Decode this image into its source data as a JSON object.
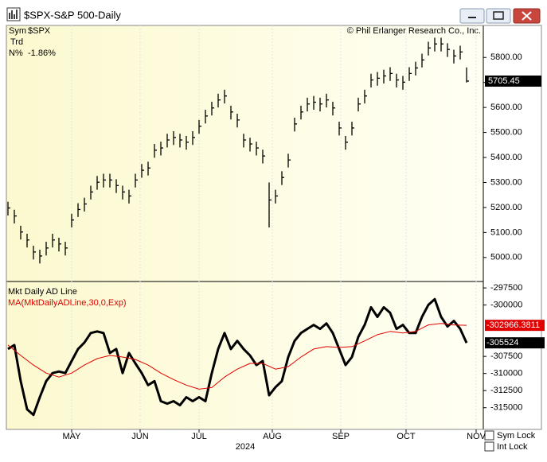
{
  "window": {
    "title": "$SPX-S&P 500-Daily"
  },
  "info": {
    "sym_label": "Sym",
    "sym": "$SPX",
    "trd": "Trd",
    "n_label": "N%",
    "n": "-1.86%",
    "copyright": "© Phil Erlanger Research Co., Inc."
  },
  "controls": [
    "Sym Lock",
    "Int Lock"
  ],
  "chart_data": [
    {
      "type": "ohlc",
      "color": "#000000",
      "x": [
        0,
        2,
        4,
        6,
        8,
        10,
        12,
        14,
        16,
        18,
        20,
        22,
        24,
        26,
        28,
        30,
        32,
        34,
        36,
        38,
        40,
        42,
        44,
        46,
        48,
        50,
        52,
        54,
        56,
        58,
        60,
        62,
        64,
        66,
        68,
        70,
        72,
        74,
        76,
        78,
        80,
        82,
        84,
        86,
        88,
        90,
        92,
        94,
        96,
        98,
        100,
        102,
        104,
        106,
        108,
        110,
        112,
        114,
        116,
        118,
        120,
        122,
        124,
        126,
        128,
        130,
        132,
        134,
        136,
        138,
        140,
        142,
        144
      ],
      "high": [
        5223,
        5191,
        5127,
        5095,
        5047,
        5031,
        5063,
        5095,
        5079,
        5063,
        5175,
        5217,
        5239,
        5287,
        5326,
        5335,
        5335,
        5313,
        5287,
        5271,
        5335,
        5374,
        5383,
        5454,
        5463,
        5495,
        5505,
        5495,
        5486,
        5505,
        5550,
        5591,
        5623,
        5655,
        5671,
        5607,
        5575,
        5495,
        5479,
        5463,
        5431,
        5300,
        5271,
        5345,
        5415,
        5559,
        5607,
        5639,
        5646,
        5639,
        5655,
        5623,
        5543,
        5486,
        5543,
        5639,
        5671,
        5735,
        5742,
        5751,
        5761,
        5735,
        5726,
        5761,
        5783,
        5815,
        5863,
        5879,
        5879,
        5857,
        5831,
        5847,
        5760
      ],
      "low": [
        5168,
        5136,
        5072,
        5040,
        4992,
        4976,
        5008,
        5040,
        5024,
        5008,
        5120,
        5162,
        5184,
        5232,
        5271,
        5280,
        5280,
        5258,
        5232,
        5216,
        5280,
        5319,
        5328,
        5399,
        5408,
        5440,
        5450,
        5440,
        5431,
        5450,
        5495,
        5536,
        5568,
        5600,
        5616,
        5552,
        5520,
        5440,
        5424,
        5408,
        5376,
        5120,
        5216,
        5290,
        5360,
        5504,
        5552,
        5584,
        5591,
        5584,
        5600,
        5568,
        5488,
        5431,
        5488,
        5584,
        5616,
        5680,
        5687,
        5696,
        5706,
        5680,
        5671,
        5706,
        5728,
        5760,
        5808,
        5824,
        5824,
        5802,
        5776,
        5792,
        5700
      ],
      "close": [
        5198,
        5166,
        5102,
        5070,
        5022,
        5006,
        5038,
        5070,
        5054,
        5038,
        5150,
        5192,
        5214,
        5262,
        5301,
        5310,
        5310,
        5288,
        5262,
        5246,
        5310,
        5349,
        5358,
        5429,
        5438,
        5470,
        5480,
        5470,
        5461,
        5480,
        5525,
        5566,
        5598,
        5630,
        5646,
        5582,
        5550,
        5470,
        5454,
        5438,
        5406,
        5230,
        5246,
        5320,
        5390,
        5534,
        5582,
        5614,
        5621,
        5614,
        5630,
        5598,
        5518,
        5461,
        5518,
        5614,
        5646,
        5710,
        5717,
        5726,
        5736,
        5710,
        5701,
        5736,
        5758,
        5790,
        5838,
        5854,
        5854,
        5832,
        5806,
        5822,
        5705.45
      ],
      "xlim": [
        -0.5,
        149.25
      ],
      "ylim": [
        4904,
        5928
      ],
      "yticks": [
        {
          "value": 5000,
          "label": "5000.00"
        },
        {
          "value": 5100,
          "label": "5100.00"
        },
        {
          "value": 5200,
          "label": "5200.00"
        },
        {
          "value": 5300,
          "label": "5300.00"
        },
        {
          "value": 5400,
          "label": "5400.00"
        },
        {
          "value": 5500,
          "label": "5500.00"
        },
        {
          "value": 5600,
          "label": "5600.00"
        },
        {
          "value": 5700,
          "label": "5700.00"
        },
        {
          "value": 5800,
          "label": "5800.00"
        }
      ]
    },
    {
      "type": "line",
      "xlim": [
        -0.5,
        149.25
      ],
      "ylim": [
        -318170,
        -296560
      ],
      "yticks": [
        -297500,
        -300000,
        -307500,
        -310000,
        -312500,
        -315000
      ],
      "xticks": [
        {
          "value": 20,
          "label": "MAY"
        },
        {
          "value": 41.5,
          "label": "JUN"
        },
        {
          "value": 60,
          "label": "JUL"
        },
        {
          "value": 83,
          "label": "AUG"
        },
        {
          "value": 104.5,
          "label": "SEP"
        },
        {
          "value": 125,
          "label": "OCT"
        },
        {
          "value": 147,
          "label": "NOV"
        }
      ],
      "xlabel": "2024",
      "series": [
        {
          "name": "Mkt Daily AD Line",
          "color": "#000000",
          "x": [
            0,
            2,
            4,
            6,
            8,
            10,
            12,
            14,
            16,
            18,
            20,
            22,
            24,
            26,
            28,
            30,
            32,
            34,
            36,
            38,
            40,
            42,
            44,
            46,
            48,
            50,
            52,
            54,
            56,
            58,
            60,
            62,
            64,
            66,
            68,
            70,
            72,
            74,
            76,
            78,
            80,
            82,
            84,
            86,
            88,
            90,
            92,
            94,
            96,
            98,
            100,
            102,
            104,
            106,
            108,
            110,
            112,
            114,
            116,
            118,
            120,
            122,
            124,
            126,
            128,
            130,
            132,
            134,
            136,
            138,
            140,
            142,
            144
          ],
          "values": [
            -306420,
            -305840,
            -311120,
            -315230,
            -316050,
            -313470,
            -311120,
            -309940,
            -309710,
            -309940,
            -308180,
            -306420,
            -305480,
            -304090,
            -303860,
            -304090,
            -307010,
            -306420,
            -309940,
            -307010,
            -308530,
            -309940,
            -311700,
            -311120,
            -314050,
            -314410,
            -314050,
            -314640,
            -313470,
            -314050,
            -313470,
            -314050,
            -309940,
            -306420,
            -304090,
            -306420,
            -305240,
            -306420,
            -307360,
            -308770,
            -308180,
            -313180,
            -312000,
            -311120,
            -307600,
            -305240,
            -304090,
            -303490,
            -302900,
            -303490,
            -302680,
            -304090,
            -306420,
            -308770,
            -307600,
            -304660,
            -302900,
            -300320,
            -301730,
            -300320,
            -301140,
            -303490,
            -302900,
            -304090,
            -304090,
            -301730,
            -299970,
            -299140,
            -301730,
            -303140,
            -302320,
            -303490,
            -305524
          ]
        },
        {
          "name": "MA(MktDailyADLine,30,0,Exp)",
          "color": "#e00000",
          "x": [
            0,
            4,
            8,
            12,
            16,
            20,
            24,
            28,
            32,
            36,
            40,
            44,
            48,
            52,
            56,
            60,
            64,
            68,
            72,
            76,
            80,
            84,
            88,
            92,
            96,
            100,
            104,
            108,
            112,
            116,
            120,
            124,
            128,
            132,
            136,
            140,
            144
          ],
          "values": [
            -305840,
            -307360,
            -308770,
            -309940,
            -310530,
            -309940,
            -308770,
            -307830,
            -307360,
            -307600,
            -307950,
            -308770,
            -309940,
            -310880,
            -311700,
            -312290,
            -312060,
            -310530,
            -309360,
            -308530,
            -308530,
            -309360,
            -309000,
            -307600,
            -306420,
            -306070,
            -306190,
            -306070,
            -305240,
            -304330,
            -303860,
            -304090,
            -303860,
            -302900,
            -302680,
            -302900,
            -302966.3811
          ]
        }
      ]
    }
  ]
}
